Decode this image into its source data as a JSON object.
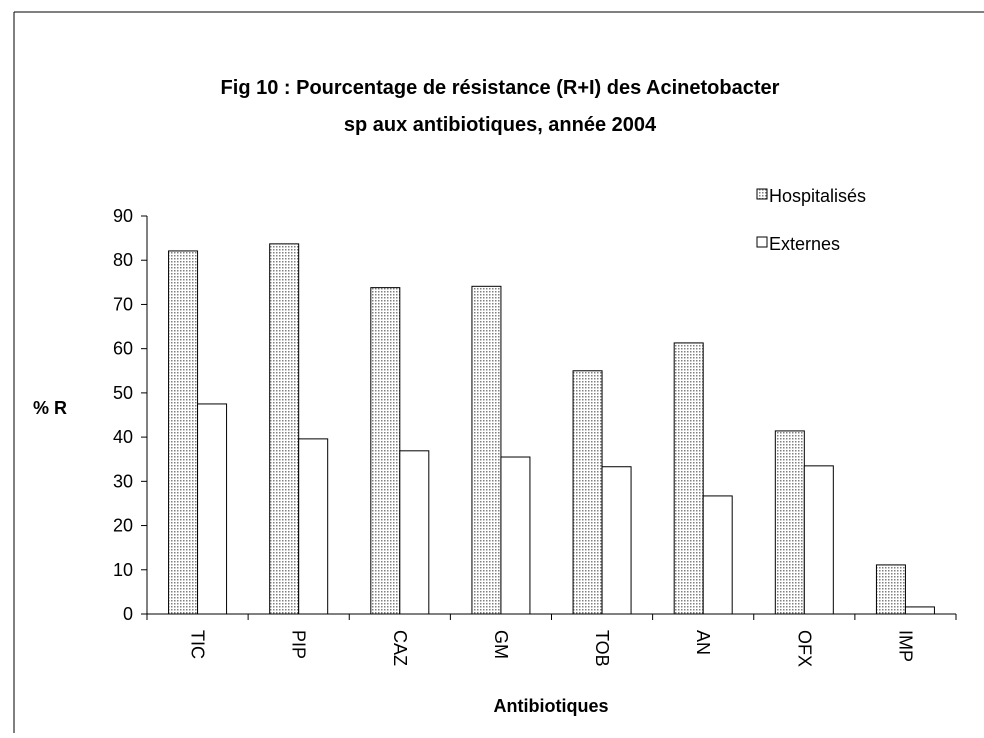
{
  "chart_data": {
    "type": "bar",
    "title": [
      "Fig 10 : Pourcentage de résistance (R+I) des Acinetobacter",
      "sp aux antibiotiques, année 2004"
    ],
    "ylabel": "% R",
    "xlabel": "Antibiotiques",
    "categories": [
      "TIC",
      "PIP",
      "CAZ",
      "GM",
      "TOB",
      "AN",
      "OFX",
      "IMP"
    ],
    "series": [
      {
        "name": "Hospitalisés",
        "color": "#808080",
        "pattern": "dots",
        "values": [
          82.1,
          83.7,
          73.8,
          74.1,
          55,
          61.3,
          41.4,
          11.1
        ]
      },
      {
        "name": "Externes",
        "color": "#ffffff",
        "values": [
          47.5,
          39.6,
          36.9,
          35.5,
          33.3,
          26.7,
          33.5,
          1.6
        ]
      }
    ],
    "ylim": [
      0,
      90
    ],
    "yticks": [
      0,
      10,
      20,
      30,
      40,
      50,
      60,
      70,
      80,
      90
    ],
    "grid": false,
    "legend": "top-right"
  }
}
